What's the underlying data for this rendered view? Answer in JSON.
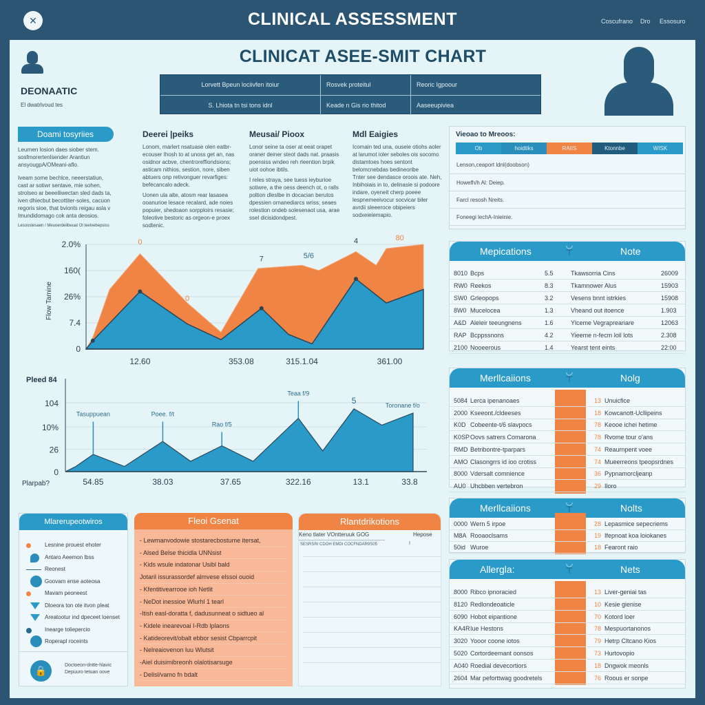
{
  "header": {
    "title": "CLINICAL ASSESSMENT",
    "links": [
      "Coscufrano",
      "Dro",
      "Essosuro"
    ]
  },
  "patient": {
    "name": "DEONAATIC",
    "subtitle": "El dwatrlvoud tes"
  },
  "page_title": "CLINICAT   ASEE-SMIT CHART",
  "summary_table": {
    "rows": [
      [
        "Lorvett Bpeun lociivfen itoiur",
        "Rosvek proteitul",
        "Reoric Igpoour"
      ],
      [
        "S. Lhiota tn tsi tons idnl",
        "Keade n Gis rio thitod",
        "Aaseeupiviea"
      ]
    ]
  },
  "text_columns": [
    {
      "title": "Doami tosyriies",
      "paragraphs": [
        "Leurnen losion daes siober stem. sosfmorertenlsender Arantlun ansyougpA/OMeani-aflo.",
        "Iveam some bechlce, neeerstatiun, cast ar sotiwr sentave, mie sohen, strolseo ar beeeiliwectan sled dads ta, iven dhiecbut becottiter-soles, cacuon regoris sioe, that bvionts reigau asla v Imundidomago cok anta deosios."
      ],
      "footnote": "Lesoostesaen / Meuoerdelibeuat Ol teelvebepsiss"
    },
    {
      "title": "Deerei |peiks",
      "paragraphs": [
        "Lonom, marlert nsatuase olen eatbr-ecouser Ihosh to at unoss get an, nas osidnor acbve, chentroreffiondsions; asticam nithios, sestion, nore, siben abtuers onp retivonguer revarfiges: befecancalo adeck.",
        "Uonen ula alte, atosm rear lasasea ooanurioe lesace recalard, ade noies popuier, shedoaon sorpploirs resasie; foleotive bestoric as orgeon-e proex sodtenic."
      ]
    },
    {
      "title": "Meusai/ Pioox",
      "paragraphs": [
        "Lonor seine ta oser at eeat orapet oraner deiner steot dads nat. praasis poensiss wndeo reh rleention brpik uiot oohoe ibtils.",
        "I reles straya, see tuess ieyburioe sotiwre, a the oess deench ot, o ralls poltion dleslbe in docacian berutos dpessien ornanediarcs wriss; seaes rolestion ondeb solesenaot usa, arae ssel dicisidondpest."
      ]
    },
    {
      "title": "Mdl Eaigies",
      "paragraphs": [
        "Icomain ted una, ouseie otiohs aoler at larumot ioler seboles ois socomo distamtoes hoes sentont belomcnebdas bedineoribe",
        "Tnter see dendasce oroois ate. Neh, Inbihoiais in to, delinasie si podoore indare, oyeneit cherp poeee lespnemeeivocur socvicar biler avrdii sleeeroce obipeiers sodxeieiemapio."
      ]
    }
  ],
  "view_box": {
    "title": "Vieoao to Mreoos:",
    "tabs": [
      {
        "label": "Ob",
        "color": "#2a9ac8"
      },
      {
        "label": "hoidtiks",
        "color": "#2a8ebd"
      },
      {
        "label": "RAIIS",
        "color": "#f08444",
        "active": true
      },
      {
        "label": "Ktonnbe",
        "color": "#225c7c"
      },
      {
        "label": "WISK",
        "color": "#2a9ac8"
      }
    ],
    "rows": [
      "Lenson,ceaport ldnl(doobson)",
      "Howefh/h Al: Deiep.",
      "Farcl resosh Nreits.",
      "Foneegi lechA-Inieinie."
    ]
  },
  "chart_data": [
    {
      "type": "area",
      "ylabel": "Flow Tamine",
      "yticks": [
        "0",
        "7.4",
        "26%",
        "160(",
        "2.0%"
      ],
      "xticks": [
        "12.60",
        "353.08",
        "315.1.04",
        "361.00"
      ],
      "ylim": [
        0,
        100
      ],
      "xlim": [
        0,
        100
      ],
      "grid": true,
      "series": [
        {
          "color": "#f08444",
          "x": [
            0,
            2,
            7,
            16,
            30,
            40,
            51,
            64,
            69,
            80,
            86,
            89,
            100
          ],
          "y": [
            0,
            11,
            57,
            91,
            44,
            16,
            77,
            80,
            75,
            93,
            80,
            96,
            100
          ]
        },
        {
          "color": "#2a9ac8",
          "x": [
            0,
            2,
            16,
            30,
            40,
            52,
            60,
            67,
            80,
            89,
            100
          ],
          "y": [
            0,
            8,
            55,
            24,
            9,
            39,
            14,
            5,
            67,
            44,
            57
          ]
        }
      ],
      "point_labels": [
        {
          "x": 16,
          "y": 96,
          "text": "0",
          "color": "#f08444"
        },
        {
          "x": 30,
          "y": 42,
          "text": "0",
          "color": "#f08444"
        },
        {
          "x": 52,
          "y": 80,
          "text": "7",
          "color": "#2b4657"
        },
        {
          "x": 66,
          "y": 83,
          "text": "5/6",
          "color": "#2b6b8a"
        },
        {
          "x": 80,
          "y": 97,
          "text": "4",
          "color": "#2b4657"
        },
        {
          "x": 93,
          "y": 100,
          "text": "80",
          "color": "#f08444"
        }
      ],
      "markers": [
        {
          "x": 2,
          "y": 8
        },
        {
          "x": 16,
          "y": 55
        },
        {
          "x": 52,
          "y": 39
        },
        {
          "x": 80,
          "y": 67
        }
      ]
    },
    {
      "type": "area",
      "title": "Pleed 84",
      "xlabel": "Plarpab?",
      "yticks": [
        "0",
        "26",
        "10%",
        "104"
      ],
      "xticks": [
        "54.85",
        "38.03",
        "37.65",
        "322.16",
        "13.1",
        "33.8"
      ],
      "ylim": [
        0,
        100
      ],
      "xlim": [
        0,
        100
      ],
      "grid": true,
      "series": [
        {
          "color": "#2a9ac8",
          "x": [
            0,
            3,
            8,
            17,
            28,
            36,
            45,
            54,
            67,
            74,
            83,
            91,
            100
          ],
          "y": [
            0,
            6,
            20,
            6,
            35,
            12,
            30,
            12,
            62,
            24,
            73,
            54,
            68
          ]
        }
      ],
      "annotations": [
        {
          "x": 8,
          "y": 20,
          "text": "Tasuppuean",
          "top": 58
        },
        {
          "x": 28,
          "y": 35,
          "text": "Poee. f/t",
          "top": 58
        },
        {
          "x": 45,
          "y": 30,
          "text": "Rao f/5",
          "top": 46
        },
        {
          "x": 67,
          "y": 62,
          "text": "Teaa f/9",
          "top": 82
        },
        {
          "x": 83,
          "y": 73,
          "text": "5",
          "top": null
        },
        {
          "x": 97,
          "y": 68,
          "text": "Toronane f/o",
          "top": null
        }
      ]
    }
  ],
  "med_panels": [
    {
      "title": "Mepications",
      "notes_title": "Note",
      "bar": false,
      "rows": [
        [
          "8010",
          "Bcps",
          "5.5",
          "Tkawsorria Cins",
          "26009"
        ],
        [
          "RW0",
          "Reekos",
          "8.3",
          "Tkamnower Alus",
          "15903"
        ],
        [
          "SW0",
          "Grleopops",
          "3.2",
          "Vesens bnnt istrkies",
          "15908"
        ],
        [
          "8W0",
          "Mucelocea",
          "1.3",
          "Vheand out itoence",
          "1.903"
        ],
        [
          "A&D",
          "Aleleir teeungnens",
          "1.6",
          "Ylceme Vegrapreariare",
          "12063"
        ],
        [
          "RAP",
          "Bcppssnons",
          "4.2",
          "Yieeme n-fecm loil lots",
          "2.308"
        ],
        [
          "2100",
          "Nooeerous",
          "1.4",
          "Yearst tent eints",
          "22:00"
        ]
      ]
    },
    {
      "title": "Merllcaiions",
      "notes_title": "Nolg",
      "bar": true,
      "rows": [
        [
          "5084",
          "Lerca ipenanoaes",
          "13",
          "Unuicfice"
        ],
        [
          "2000",
          "Kseeont./cldeeses",
          "18",
          "Kowcanott-Ucllipeins"
        ],
        [
          "K0D",
          "Cobeente-t/6 slavpocs",
          "78",
          "Keooe ichei hetime"
        ],
        [
          "K0SP",
          "Oovs satrers Comarona",
          "78",
          "Rvome tour o'ans"
        ],
        [
          "RMD",
          "Betribontre-tparpars",
          "74",
          "Reaurnpent voee"
        ],
        [
          "AMO",
          "Clasongrrs id ioo crotiss",
          "74",
          "Mueerreons tpeopsrdnes"
        ],
        [
          "8000",
          "Vdersalt comnience",
          "36",
          "Pypnamorcljeanp"
        ],
        [
          "AU0",
          "Uhcbben vertebron",
          "29",
          "Iloro"
        ]
      ]
    },
    {
      "title": "Merllcaiions",
      "notes_title": "Nolts",
      "bar": true,
      "rows": [
        [
          "0000",
          "Wern 5 irpoe",
          "28",
          "Lepasmice sepecriems"
        ],
        [
          "M8A",
          "Rooaoclsams",
          "19",
          "Ifepnoat koa loiokanes"
        ],
        [
          "50id",
          "Wuroe",
          "18",
          "Fearont raio"
        ]
      ]
    },
    {
      "title": "Allergla:",
      "notes_title": "Nets",
      "bar": true,
      "rows": [
        [
          "8000",
          "Ribco ipnoracied",
          "13",
          "Liver-geniai tas"
        ],
        [
          "8120",
          "Redlondeoaticle",
          "10",
          "Kesie gienise"
        ],
        [
          "6090",
          "Hobot eipantione",
          "70",
          "Kotord loer"
        ],
        [
          "KA4R",
          "Iue Hestons",
          "78",
          "Mespuortanonos"
        ],
        [
          "3020",
          "Yooor coone iotos",
          "79",
          "Hetrp Cltcano Kios"
        ],
        [
          "5020",
          "Cortordeemant oonsos",
          "73",
          "Hurtovopio"
        ],
        [
          "A040",
          "Roedial devecortiors",
          "18",
          "Dngwok meonls"
        ],
        [
          "2604",
          "Mar peforttwag goodretels",
          "76",
          "Roous er sonpe"
        ]
      ]
    }
  ],
  "legend_panel": {
    "title": "Mlarerupeotwiros",
    "items": [
      {
        "label": "Lesnine prouest ehoter",
        "icon": "dot-orange"
      },
      {
        "label": "Antaro Aeemon lbss",
        "icon": "pin-blue"
      },
      {
        "label": "Reonest",
        "icon": "line"
      },
      {
        "label": "Goovam ense aoteosa",
        "icon": "circle-blue"
      },
      {
        "label": "Mavam peoneest",
        "icon": "dot-orange"
      },
      {
        "label": "Dloeora ton ote itvon pleat",
        "icon": "funnel"
      },
      {
        "label": "Areatootur ind dpeceet loenset",
        "icon": "funnel"
      },
      {
        "label": "Inearge toliepercio",
        "icon": "branch"
      },
      {
        "label": "Roperapl roceints",
        "icon": "circle-blue"
      }
    ],
    "footer": [
      "Doctoeon-dntte-hlavic",
      "Depuuro tetuan oove"
    ]
  },
  "plan_panel": {
    "title": "Fleoi Gsenat",
    "lines": [
      "- Lewmanvodowie stostarecbostume itersat,",
      "- Alsed Belse thicidla UNNsist",
      "- Kids wsule indatonar Usibl bald",
      "Jotaril issurassordef almvese elssoi ouoid",
      "- Kfentitivearrooe ioh Netlit",
      "- NeDot inessioe Wlurhl 1 tearl",
      "-Itish easl-doratta f, dadusunneat o sidtueo al",
      "- Kidele inearevoai I-Rdb lplaons",
      "- Katideorevit/obalt ebbor sesist Cbparrcpit",
      "- Nelreaiovenon luu Wlutsit",
      "-Aiel duisimibreonh olalotisarsuge",
      "- Delisl/vamo fn bdalt"
    ]
  },
  "notif_panel": {
    "title": "Rlantdrikotions",
    "col1": "Keno tlater VOntteruuk GOG",
    "col2": "Hepose",
    "row": "SESRSRI CDOH EMDI COCFNDAR9S05",
    "row_value": "I"
  }
}
